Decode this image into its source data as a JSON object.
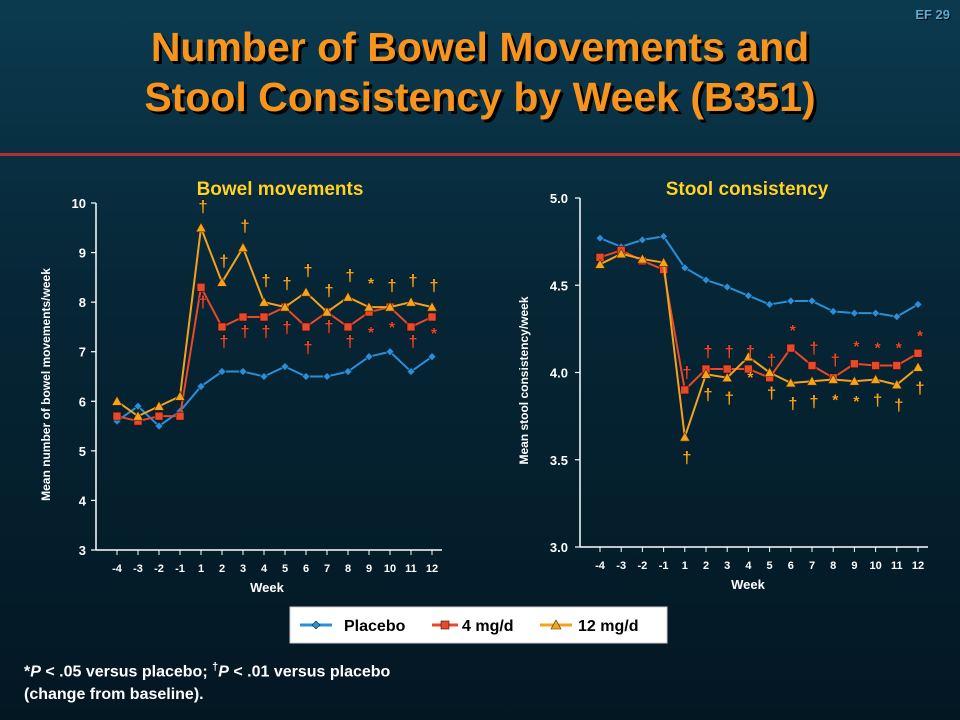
{
  "slide_id": "EF 29",
  "title_line1": "Number of Bowel Movements and",
  "title_line2": "Stool Consistency by Week (B351)",
  "footnote": {
    "line1_p1": "*",
    "line1_p2": "P",
    "line1_p3": " < .05 versus placebo; ",
    "line1_sup": "†",
    "line1_p4": "P",
    "line1_p5": " < .01 versus placebo",
    "line2": "(change from baseline)."
  },
  "colors": {
    "placebo": "#2a8fd8",
    "mg4": "#e8492b",
    "mg12": "#f5a21e",
    "title": "#f7941d",
    "panel_title": "#ffd42a"
  },
  "chart_data": [
    {
      "type": "line",
      "title": "Bowel movements",
      "xlabel": "Week",
      "ylabel": "Mean number of bowel movements/week",
      "x": [
        "-4",
        "-3",
        "-2",
        "-1",
        "1",
        "2",
        "3",
        "4",
        "5",
        "6",
        "7",
        "8",
        "9",
        "10",
        "11",
        "12"
      ],
      "ylim": [
        3,
        10
      ],
      "yticks": [
        "3",
        "4",
        "5",
        "6",
        "7",
        "8",
        "9",
        "10"
      ],
      "grid": false,
      "series": [
        {
          "name": "Placebo",
          "marker": "diamond",
          "values": [
            5.6,
            5.9,
            5.5,
            5.8,
            6.3,
            6.6,
            6.6,
            6.5,
            6.7,
            6.5,
            6.5,
            6.6,
            6.9,
            7.0,
            6.6,
            6.9
          ]
        },
        {
          "name": "4 mg/d",
          "marker": "square",
          "values": [
            5.7,
            5.6,
            5.7,
            5.7,
            8.3,
            7.5,
            7.7,
            7.7,
            7.9,
            7.5,
            7.8,
            7.5,
            7.8,
            7.9,
            7.5,
            7.7
          ],
          "annotations": [
            "",
            "",
            "",
            "",
            "†",
            "†",
            "†",
            "†",
            "†",
            "†",
            "†",
            "†",
            "*",
            "*",
            "†",
            "*"
          ]
        },
        {
          "name": "12 mg/d",
          "marker": "triangle",
          "values": [
            6.0,
            5.7,
            5.9,
            6.1,
            9.5,
            8.4,
            9.1,
            8.0,
            7.9,
            8.2,
            7.8,
            8.1,
            7.9,
            7.9,
            8.0,
            7.9
          ],
          "annotations": [
            "",
            "",
            "",
            "",
            "†",
            "†",
            "†",
            "†",
            "†",
            "†",
            "†",
            "†",
            "*",
            "†",
            "†",
            "†"
          ]
        }
      ]
    },
    {
      "type": "line",
      "title": "Stool consistency",
      "xlabel": "Week",
      "ylabel": "Mean stool consistency/week",
      "x": [
        "-4",
        "-3",
        "-2",
        "-1",
        "1",
        "2",
        "3",
        "4",
        "5",
        "6",
        "7",
        "8",
        "9",
        "10",
        "11",
        "12"
      ],
      "ylim": [
        3.0,
        5.0
      ],
      "yticks": [
        "3.0",
        "3.5",
        "4.0",
        "4.5",
        "5.0"
      ],
      "grid": false,
      "series": [
        {
          "name": "Placebo",
          "marker": "diamond",
          "values": [
            4.77,
            4.72,
            4.76,
            4.78,
            4.6,
            4.53,
            4.49,
            4.44,
            4.39,
            4.41,
            4.41,
            4.35,
            4.34,
            4.34,
            4.32,
            4.39
          ]
        },
        {
          "name": "4 mg/d",
          "marker": "square",
          "values": [
            4.66,
            4.7,
            4.64,
            4.59,
            3.9,
            4.02,
            4.02,
            4.02,
            3.97,
            4.14,
            4.04,
            3.97,
            4.05,
            4.04,
            4.04,
            4.11
          ],
          "annotations": [
            "",
            "",
            "",
            "",
            "†",
            "†",
            "†",
            "†",
            "†",
            "*",
            "†",
            "†",
            "*",
            "*",
            "*",
            "*"
          ]
        },
        {
          "name": "12 mg/d",
          "marker": "triangle",
          "values": [
            4.62,
            4.68,
            4.65,
            4.63,
            3.63,
            3.99,
            3.97,
            4.09,
            4.0,
            3.94,
            3.95,
            3.96,
            3.95,
            3.96,
            3.93,
            4.03
          ],
          "annotations": [
            "",
            "",
            "",
            "",
            "†",
            "†",
            "†",
            "*",
            "†",
            "†",
            "†",
            "*",
            "*",
            "†",
            "†",
            "†"
          ]
        }
      ]
    }
  ],
  "legend": {
    "placement": "bottom-center",
    "items": [
      "Placebo",
      "4 mg/d",
      "12 mg/d"
    ]
  }
}
